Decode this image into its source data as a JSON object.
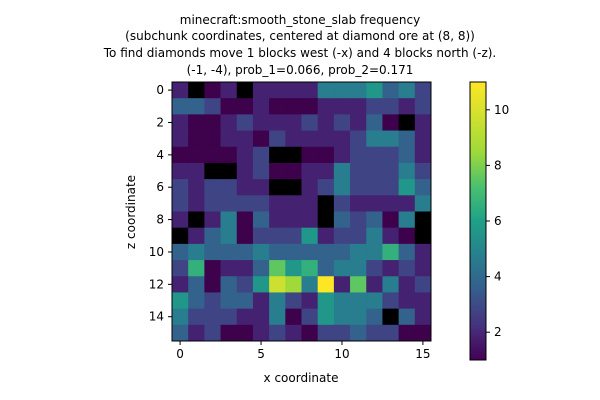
{
  "chart_data": {
    "type": "heatmap",
    "title_lines": [
      "minecraft:smooth_stone_slab frequency",
      "(subchunk coordinates, centered at diamond ore at (8, 8))",
      "To find diamonds move 1 blocks west (-x) and 4 blocks north (-z).",
      "(-1, -4), prob_1=0.066, prob_2=0.171"
    ],
    "xlabel": "x coordinate",
    "ylabel": "z coordinate",
    "x_ticks": [
      0,
      5,
      10,
      15
    ],
    "y_ticks": [
      0,
      2,
      4,
      6,
      8,
      10,
      12,
      14
    ],
    "colorbar_ticks": [
      2,
      4,
      6,
      8,
      10
    ],
    "colorbar_range": [
      1,
      11
    ],
    "colormap": "viridis",
    "grid": [
      [
        2,
        0,
        1,
        2,
        0,
        2,
        2,
        2,
        2,
        5,
        5,
        5,
        6,
        4,
        5,
        3
      ],
      [
        4,
        4,
        3,
        1,
        1,
        2,
        1,
        1,
        1,
        2,
        2,
        2,
        3,
        3,
        2,
        3
      ],
      [
        2,
        1,
        1,
        2,
        3,
        2,
        2,
        2,
        3,
        2,
        3,
        2,
        4,
        1,
        0,
        2
      ],
      [
        2,
        1,
        1,
        2,
        2,
        1,
        3,
        2,
        2,
        2,
        2,
        3,
        5,
        5,
        4,
        2
      ],
      [
        1,
        1,
        1,
        1,
        2,
        3,
        0,
        0,
        1,
        1,
        2,
        3,
        3,
        3,
        4,
        2
      ],
      [
        2,
        2,
        0,
        0,
        2,
        3,
        1,
        1,
        2,
        2,
        5,
        3,
        3,
        3,
        5,
        3
      ],
      [
        3,
        2,
        3,
        3,
        2,
        2,
        0,
        0,
        2,
        3,
        5,
        3,
        3,
        3,
        6,
        4
      ],
      [
        3,
        2,
        3,
        3,
        3,
        3,
        2,
        2,
        2,
        0,
        3,
        2,
        2,
        2,
        2,
        5
      ],
      [
        2,
        0,
        2,
        5,
        1,
        4,
        2,
        2,
        2,
        0,
        4,
        3,
        4,
        1,
        5,
        0
      ],
      [
        0,
        2,
        4,
        5,
        1,
        3,
        3,
        3,
        6,
        2,
        3,
        3,
        5,
        2,
        1,
        0
      ],
      [
        4,
        5,
        4,
        4,
        4,
        5,
        4,
        4,
        4,
        4,
        4,
        5,
        5,
        7,
        4,
        2
      ],
      [
        3,
        7,
        1,
        2,
        2,
        4,
        8,
        6,
        7,
        4,
        5,
        5,
        3,
        2,
        3,
        2
      ],
      [
        2,
        4,
        1,
        4,
        3,
        6,
        10,
        9,
        5,
        11,
        2,
        8,
        2,
        5,
        2,
        3
      ],
      [
        6,
        4,
        3,
        4,
        4,
        2,
        5,
        3,
        2,
        6,
        5,
        5,
        5,
        3,
        2,
        2
      ],
      [
        5,
        3,
        3,
        3,
        2,
        2,
        5,
        1,
        3,
        6,
        5,
        5,
        4,
        0,
        4,
        2
      ],
      [
        4,
        2,
        3,
        1,
        1,
        2,
        3,
        2,
        1,
        3,
        3,
        4,
        3,
        3,
        1,
        1
      ]
    ]
  }
}
